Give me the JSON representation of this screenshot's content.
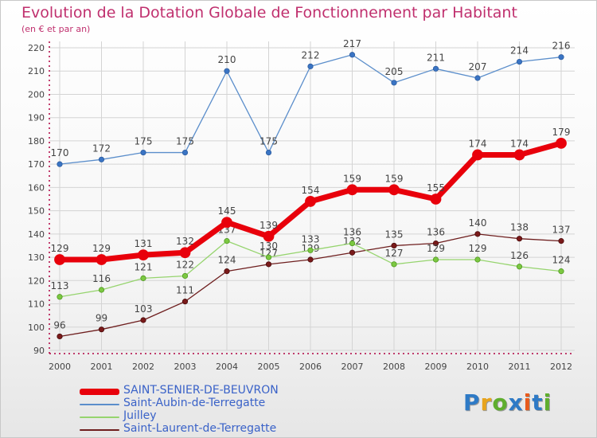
{
  "title": "Evolution de la Dotation Globale de Fonctionnement par Habitant",
  "subtitle": "(en € et par an)",
  "logo": {
    "text": "Proxiti",
    "colors": [
      "#2e7ac6",
      "#e8a41c",
      "#5fae2e",
      "#2e7ac6",
      "#e85a1c",
      "#2e7ac6",
      "#5fae2e"
    ]
  },
  "chart_data": {
    "type": "line",
    "x": [
      "2000",
      "2001",
      "2002",
      "2003",
      "2004",
      "2005",
      "2006",
      "2007",
      "2008",
      "2009",
      "2010",
      "2011",
      "2012"
    ],
    "ylim": [
      90,
      220
    ],
    "yticks": [
      90,
      100,
      110,
      120,
      130,
      140,
      150,
      160,
      170,
      180,
      190,
      200,
      210,
      220
    ],
    "grid": true,
    "series": [
      {
        "name": "SAINT-SENIER-DE-BEUVRON",
        "color": "#e8000b",
        "values": [
          129,
          129,
          131,
          132,
          145,
          139,
          154,
          159,
          159,
          155,
          174,
          174,
          179
        ]
      },
      {
        "name": "Saint-Aubin-de-Terregatte",
        "color": "#5b8ecb",
        "values": [
          170,
          172,
          175,
          175,
          210,
          175,
          212,
          217,
          205,
          211,
          207,
          214,
          216
        ]
      },
      {
        "name": "Juilley",
        "color": "#96d46e",
        "values": [
          113,
          116,
          121,
          122,
          137,
          130,
          133,
          136,
          127,
          129,
          129,
          126,
          124
        ]
      },
      {
        "name": "Saint-Laurent-de-Terregatte",
        "color": "#6e1e1e",
        "values": [
          96,
          99,
          103,
          111,
          124,
          127,
          129,
          132,
          135,
          136,
          140,
          138,
          137
        ]
      }
    ]
  }
}
